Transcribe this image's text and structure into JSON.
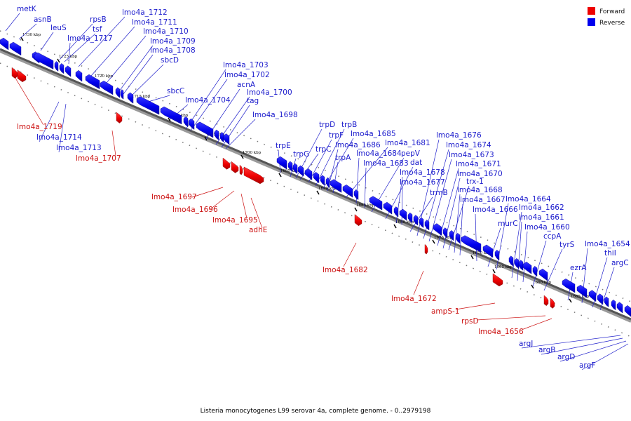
{
  "caption": "Listeria monocytogenes L99 serovar 4a, complete genome. - 0..2979198",
  "legend": [
    {
      "label": "Forward",
      "color": "#ee0000"
    },
    {
      "label": "Reverse",
      "color": "#0000ee"
    }
  ],
  "colors": {
    "forward": "#ee0000",
    "reverse": "#0000ee",
    "forward_label": "#cc1111",
    "reverse_label": "#1a1acc",
    "axis": "#555555"
  },
  "ticks": [
    "1730 kbp",
    "1725 kbp",
    "1720 kbp",
    "1715 kbp",
    "1710 kbp",
    "1705 kbp",
    "1700 kbp",
    "1695 kbp",
    "1690 kbp",
    "1685 kbp",
    "1680 kbp",
    "1675 kbp",
    "1670 kbp",
    "1665 kbp",
    "1660 kbp",
    "1655 kbp"
  ],
  "reverse_genes": [
    "metK",
    "asnB",
    "leuS",
    "rpsB",
    "tsf",
    "lmo4a_1717",
    "lmo4a_1712",
    "lmo4a_1711",
    "lmo4a_1710",
    "lmo4a_1709",
    "lmo4a_1708",
    "sbcD",
    "sbcC",
    "lmo4a_1704",
    "lmo4a_1703",
    "lmo4a_1702",
    "acnA",
    "lmo4a_1700",
    "tag",
    "lmo4a_1698",
    "trpE",
    "trpG",
    "trpD",
    "trpC",
    "trpF",
    "trpB",
    "lmo4a_1685",
    "lmo4a_1686",
    "trpA",
    "lmo4a_1681",
    "lmo4a_1684",
    "pepV",
    "lmo4a_1683",
    "dat",
    "lmo4a_1678",
    "lmo4a_1677",
    "trmB",
    "lmo4a_1676",
    "lmo4a_1674",
    "lmo4a_1673",
    "lmo4a_1671",
    "lmo4a_1670",
    "trx-1",
    "lmo4a_1668",
    "lmo4a_1667",
    "lmo4a_1666",
    "murC",
    "lmo4a_1664",
    "lmo4a_1662",
    "lmo4a_1661",
    "lmo4a_1660",
    "ccpA",
    "tyrS",
    "ezrA",
    "lmo4a_1654",
    "thiI",
    "argC",
    "lmo4a_1714",
    "lmo4a_1713",
    "argJ",
    "argB",
    "argD",
    "argF"
  ],
  "forward_genes": [
    "lmo4a_1719",
    "lmo4a_1707",
    "lmo4a_1697",
    "lmo4a_1696",
    "lmo4a_1695",
    "adhE",
    "lmo4a_1682",
    "lmo4a_1672",
    "ampS-1",
    "rpsD",
    "lmo4a_1656"
  ]
}
